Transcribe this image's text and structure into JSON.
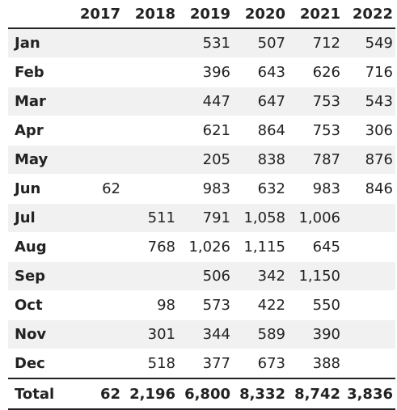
{
  "table": {
    "corner": "",
    "years": [
      "2017",
      "2018",
      "2019",
      "2020",
      "2021",
      "2022"
    ],
    "rows": [
      {
        "month": "Jan",
        "values": [
          "",
          "",
          "531",
          "507",
          "712",
          "549"
        ]
      },
      {
        "month": "Feb",
        "values": [
          "",
          "",
          "396",
          "643",
          "626",
          "716"
        ]
      },
      {
        "month": "Mar",
        "values": [
          "",
          "",
          "447",
          "647",
          "753",
          "543"
        ]
      },
      {
        "month": "Apr",
        "values": [
          "",
          "",
          "621",
          "864",
          "753",
          "306"
        ]
      },
      {
        "month": "May",
        "values": [
          "",
          "",
          "205",
          "838",
          "787",
          "876"
        ]
      },
      {
        "month": "Jun",
        "values": [
          "62",
          "",
          "983",
          "632",
          "983",
          "846"
        ]
      },
      {
        "month": "Jul",
        "values": [
          "",
          "511",
          "791",
          "1,058",
          "1,006",
          ""
        ]
      },
      {
        "month": "Aug",
        "values": [
          "",
          "768",
          "1,026",
          "1,115",
          "645",
          ""
        ]
      },
      {
        "month": "Sep",
        "values": [
          "",
          "",
          "506",
          "342",
          "1,150",
          ""
        ]
      },
      {
        "month": "Oct",
        "values": [
          "",
          "98",
          "573",
          "422",
          "550",
          ""
        ]
      },
      {
        "month": "Nov",
        "values": [
          "",
          "301",
          "344",
          "589",
          "390",
          ""
        ]
      },
      {
        "month": "Dec",
        "values": [
          "",
          "518",
          "377",
          "673",
          "388",
          ""
        ]
      }
    ],
    "total": {
      "label": "Total",
      "values": [
        "62",
        "2,196",
        "6,800",
        "8,332",
        "8,742",
        "3,836"
      ]
    }
  }
}
